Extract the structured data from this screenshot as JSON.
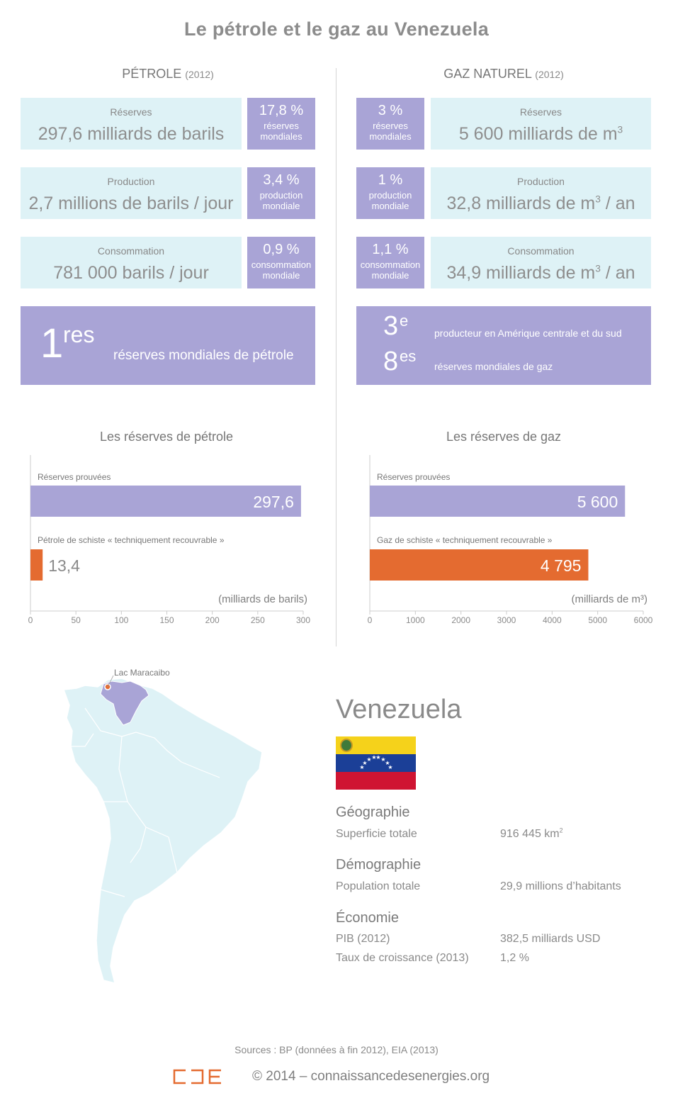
{
  "title": "Le pétrole et le gaz au Venezuela",
  "petrole": {
    "heading": "PÉTROLE",
    "year": "(2012)",
    "reserves": {
      "label": "Réserves",
      "value": "297,6 milliards de barils",
      "pct": "17,8 %",
      "pct_line1": "réserves",
      "pct_line2": "mondiales"
    },
    "production": {
      "label": "Production",
      "value": "2,7 millions de barils / jour",
      "pct": "3,4 %",
      "pct_line1": "production",
      "pct_line2": "mondiale"
    },
    "consommation": {
      "label": "Consommation",
      "value": "781 000 barils / jour",
      "pct": "0,9 %",
      "pct_line1": "consommation",
      "pct_line2": "mondiale"
    },
    "rank": {
      "num": "1",
      "sup": "res",
      "text": "réserves mondiales de pétrole"
    }
  },
  "gaz": {
    "heading": "GAZ NATUREL",
    "year": "(2012)",
    "reserves": {
      "label": "Réserves",
      "value_pre": "5 600 milliards de m",
      "value_sup": "3",
      "value_post": "",
      "pct": "3 %",
      "pct_line1": "réserves",
      "pct_line2": "mondiales"
    },
    "production": {
      "label": "Production",
      "value_pre": "32,8 milliards de m",
      "value_sup": "3",
      "value_post": " / an",
      "pct": "1 %",
      "pct_line1": "production",
      "pct_line2": "mondiale"
    },
    "consommation": {
      "label": "Consommation",
      "value_pre": "34,9 milliards de m",
      "value_sup": "3",
      "value_post": " / an",
      "pct": "1,1 %",
      "pct_line1": "consommation",
      "pct_line2": "mondiale"
    },
    "rank1": {
      "num": "3",
      "sup": "e",
      "text": "producteur en Amérique centrale et du sud"
    },
    "rank2": {
      "num": "8",
      "sup": "es",
      "text": "réserves mondiales de gaz"
    }
  },
  "chart_data": [
    {
      "type": "bar",
      "title": "Les réserves de pétrole",
      "unit_label": "(milliards de barils)",
      "categories": [
        "Réserves prouvées",
        "Pétrole de schiste « techniquement recouvrable »"
      ],
      "values": [
        297.6,
        13.4
      ],
      "value_labels": [
        "297,6",
        "13,4"
      ],
      "colors": [
        "#a9a4d6",
        "#e46b30"
      ],
      "xlim": [
        0,
        300
      ],
      "ticks": [
        0,
        50,
        100,
        150,
        200,
        250,
        300
      ]
    },
    {
      "type": "bar",
      "title": "Les réserves de gaz",
      "unit_label": "(milliards de m³)",
      "categories": [
        "Réserves prouvées",
        "Gaz de schiste « techniquement recouvrable »"
      ],
      "values": [
        5600,
        4795
      ],
      "value_labels": [
        "5 600",
        "4 795"
      ],
      "colors": [
        "#a9a4d6",
        "#e46b30"
      ],
      "xlim": [
        0,
        6000
      ],
      "ticks": [
        0,
        1000,
        2000,
        3000,
        4000,
        5000,
        6000
      ]
    }
  ],
  "map": {
    "lake_label": "Lac Maracaibo"
  },
  "country": {
    "name": "Venezuela",
    "geo_heading": "Géographie",
    "area_label": "Superficie totale",
    "area_value_pre": "916 445 km",
    "area_value_sup": "2",
    "demo_heading": "Démographie",
    "pop_label": "Population totale",
    "pop_value": "29,9 millions d’habitants",
    "eco_heading": "Économie",
    "pib_label": "PIB (2012)",
    "pib_value": "382,5 milliards USD",
    "growth_label": "Taux de croissance (2013)",
    "growth_value": "1,2 %"
  },
  "footer": {
    "sources": "Sources : BP (données à fin 2012), EIA (2013)",
    "copyright": "© 2014 – connaissancedesenergies.org"
  },
  "colors": {
    "light_blue": "#def2f6",
    "purple": "#a9a4d6",
    "orange": "#e46b30",
    "flag_yellow": "#f5d21b",
    "flag_blue": "#1b3f97",
    "flag_red": "#cf1432"
  }
}
